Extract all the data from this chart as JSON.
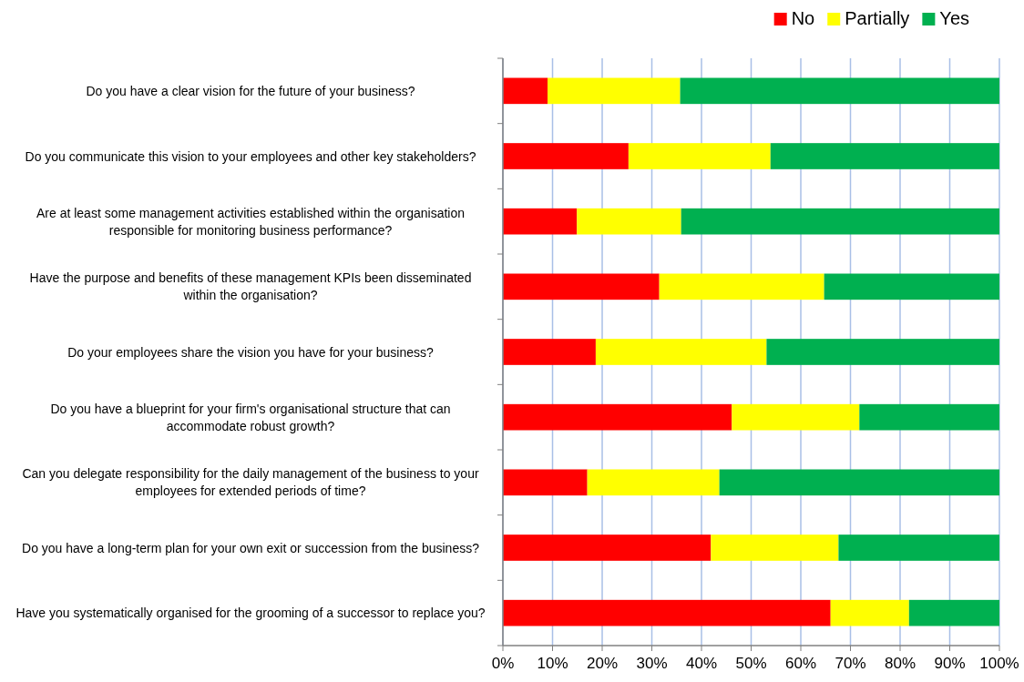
{
  "chart_data": {
    "type": "bar",
    "orientation": "horizontal",
    "stacked": true,
    "categories": [
      "Do you have a clear vision for the future of your business?",
      "Do you communicate this vision to your employees and other key stakeholders?",
      "Are at least some management activities established within the organisation responsible for monitoring business performance?",
      "Have the purpose and benefits of these management KPIs been disseminated within the organisation?",
      "Do your employees share the vision you have for your business?",
      "Do you have a blueprint for your firm's organisational structure that can accommodate robust growth?",
      "Can you delegate responsibility for the daily management of the business to your employees for extended periods of time?",
      "Do you have a long-term plan for your own exit or succession from the business?",
      "Have you systematically organised for the grooming of a successor to replace you?"
    ],
    "series": [
      {
        "name": "No",
        "color": "#ff0000",
        "values": [
          9,
          25.3,
          14.9,
          31.5,
          18.7,
          46.1,
          17,
          41.9,
          66
        ]
      },
      {
        "name": "Partially",
        "color": "#ffff00",
        "values": [
          26.7,
          28.6,
          21,
          33.2,
          34.4,
          25.7,
          26.6,
          25.7,
          15.8
        ]
      },
      {
        "name": "Yes",
        "color": "#00b050",
        "values": [
          64.3,
          46.1,
          64.1,
          35.3,
          46.9,
          28.2,
          56.4,
          32.4,
          18.2
        ]
      }
    ],
    "xlim": [
      0,
      100
    ],
    "xticks": [
      {
        "value": 0,
        "label": "0%"
      },
      {
        "value": 10,
        "label": "10%"
      },
      {
        "value": 20,
        "label": "20%"
      },
      {
        "value": 30,
        "label": "30%"
      },
      {
        "value": 40,
        "label": "40%"
      },
      {
        "value": 50,
        "label": "50%"
      },
      {
        "value": 60,
        "label": "60%"
      },
      {
        "value": 70,
        "label": "70%"
      },
      {
        "value": 80,
        "label": "80%"
      },
      {
        "value": 90,
        "label": "90%"
      },
      {
        "value": 100,
        "label": "100%"
      }
    ],
    "grid": "x",
    "legend": "top right"
  }
}
